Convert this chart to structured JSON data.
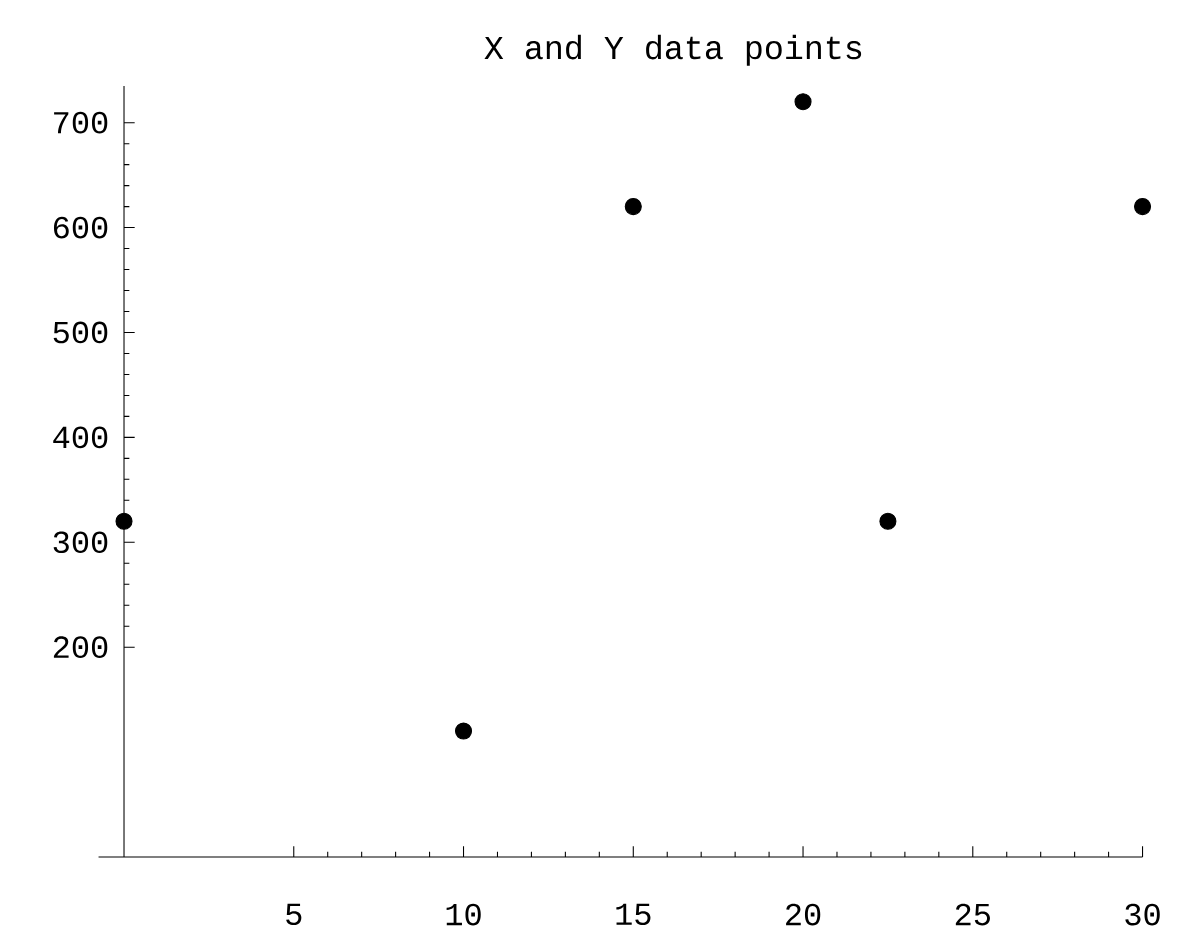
{
  "chart_data": {
    "type": "scatter",
    "title": "X and Y data points",
    "x": [
      0,
      10,
      15,
      20,
      22.5,
      30
    ],
    "values": [
      320,
      120,
      620,
      720,
      320,
      620
    ],
    "color": "#000000",
    "xlim": [
      -0.75,
      30
    ],
    "ylim": [
      0,
      735
    ],
    "xticks": [
      5,
      10,
      15,
      20,
      25,
      30
    ],
    "yticks": [
      200,
      300,
      400,
      500,
      600,
      700
    ],
    "grid": false
  }
}
